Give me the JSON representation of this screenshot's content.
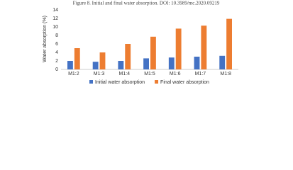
{
  "chart_data": {
    "type": "bar",
    "title": "Figure 8. Initial and final water absorption. DOI: 10.3989/mc.2020.09219",
    "y_label": "Water absorption (%)",
    "categories": [
      "M1:2",
      "M1:3",
      "M1:4",
      "M1:5",
      "M1:6",
      "M1:7",
      "M1:8"
    ],
    "series": [
      {
        "name": "Initial water absorption",
        "color": "#4472c4",
        "values": [
          2.0,
          1.8,
          2.0,
          2.6,
          2.8,
          3.0,
          3.2
        ]
      },
      {
        "name": "Final water absorption",
        "color": "#ed7d31",
        "values": [
          5.0,
          4.0,
          6.0,
          7.7,
          9.6,
          10.3,
          11.9
        ]
      }
    ],
    "ylim": [
      0,
      14
    ],
    "yticks": [
      0,
      2,
      4,
      6,
      8,
      10,
      12,
      14
    ],
    "grid": false,
    "legend": "bottom"
  }
}
